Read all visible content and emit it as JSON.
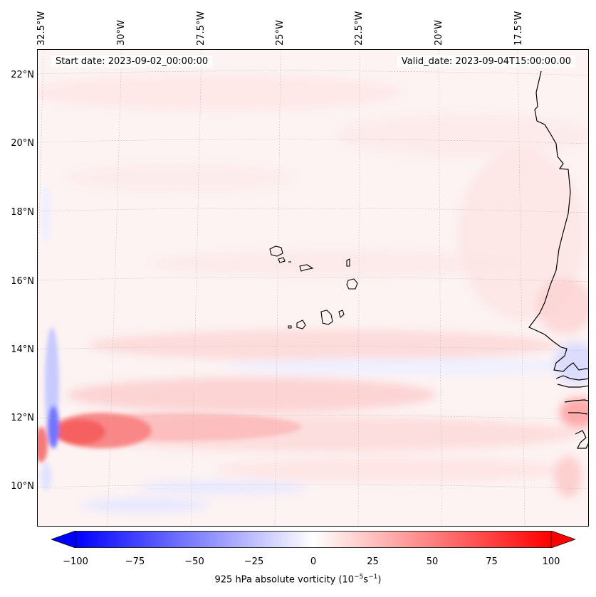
{
  "map": {
    "start_date": "Start date: 2023-09-02_00:00:00",
    "valid_date": "Valid_date: 2023-09-04T15:00:00.00",
    "lat_labels": [
      "22°N",
      "20°N",
      "18°N",
      "16°N",
      "14°N",
      "12°N",
      "10°N"
    ],
    "lon_labels": [
      "32.5°W",
      "30°W",
      "27.5°W",
      "25°W",
      "22.5°W",
      "20°W",
      "17.5°W"
    ],
    "gridlines": true,
    "coastline_color": "#000000",
    "features": [
      "Cape Verde islands",
      "West African coastline"
    ]
  },
  "colorbar": {
    "label": "925 hPa absolute vorticity (10",
    "label_exp1": "−5",
    "label_mid": "s",
    "label_exp2": "−1",
    "label_end": ")",
    "ticks": [
      "−100",
      "−75",
      "−50",
      "−25",
      "0",
      "25",
      "50",
      "75",
      "100"
    ],
    "range": [
      -100,
      100
    ],
    "colormap": "bwr",
    "extend": "both",
    "low_color": "#0000ff",
    "mid_color": "#ffffff",
    "high_color": "#ff0000"
  }
}
